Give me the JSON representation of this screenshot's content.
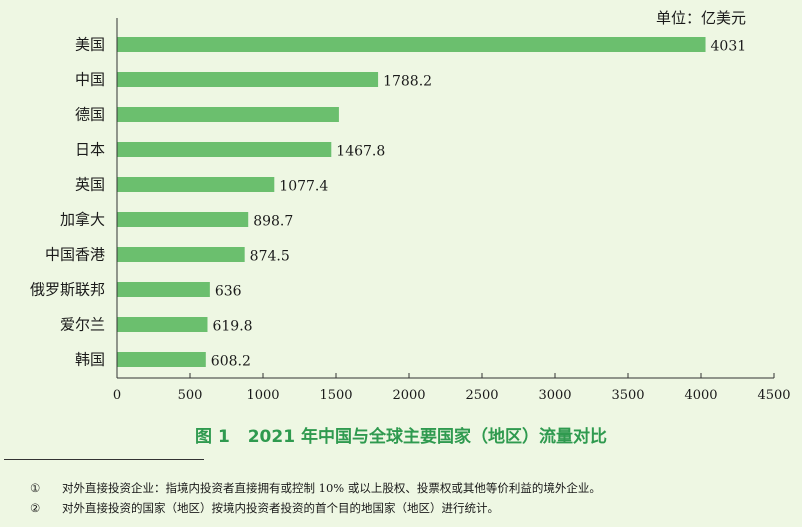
{
  "chart_data": {
    "type": "bar",
    "orientation": "horizontal",
    "unit": "单位：亿美元",
    "categories": [
      "美国",
      "中国",
      "德国",
      "日本",
      "英国",
      "加拿大",
      "中国香港",
      "俄罗斯联邦",
      "爱尔兰",
      "韩国"
    ],
    "values": [
      4031,
      1788.2,
      1520,
      1467.8,
      1077.4,
      898.7,
      874.5,
      636,
      619.8,
      608.2
    ],
    "value_labels": [
      "4031",
      "1788.2",
      "",
      "1467.8",
      "1077.4",
      "898.7",
      "874.5",
      "636",
      "619.8",
      "608.2"
    ],
    "xlim": [
      0,
      4500
    ],
    "xticks": [
      0,
      500,
      1000,
      1500,
      2000,
      2500,
      3000,
      3500,
      4000,
      4500
    ],
    "bar_color": "#6bbf6e",
    "grid": false
  },
  "caption": {
    "figure": "图 1",
    "title": "2021 年中国与全球主要国家（地区）流量对比"
  },
  "footnotes": [
    {
      "mark": "①",
      "text": "对外直接投资企业：指境内投资者直接拥有或控制 10% 或以上股权、投票权或其他等价利益的境外企业。"
    },
    {
      "mark": "②",
      "text": "对外直接投资的国家（地区）按境内投资者投资的首个目的地国家（地区）进行统计。"
    }
  ]
}
